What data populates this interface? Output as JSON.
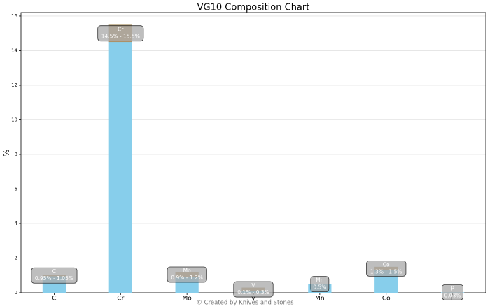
{
  "chart_data": {
    "type": "bar",
    "title": "VG10 Composition Chart",
    "ylabel": "%",
    "categories": [
      "C",
      "Cr",
      "Mo",
      "V",
      "Mn",
      "Co",
      "P"
    ],
    "values": [
      1.05,
      15.5,
      1.2,
      0.3,
      0.5,
      1.5,
      0.03
    ],
    "range_low": [
      0.95,
      14.5,
      0.9,
      0.1,
      null,
      1.3,
      null
    ],
    "value_labels": [
      "0.95% - 1.05%",
      "14.5% - 15.5%",
      "0.9% - 1.2%",
      "0.1% - 0.3%",
      "0.5%",
      "1.3% - 1.5%",
      "0.03%"
    ],
    "color": "#87ceeb",
    "range_color": "#c8955a",
    "ylim": [
      0,
      16.2
    ],
    "yticks": [
      0,
      2,
      4,
      6,
      8,
      10,
      12,
      14,
      16
    ],
    "grid": true,
    "footer": "© Created by Knives and Stones"
  }
}
